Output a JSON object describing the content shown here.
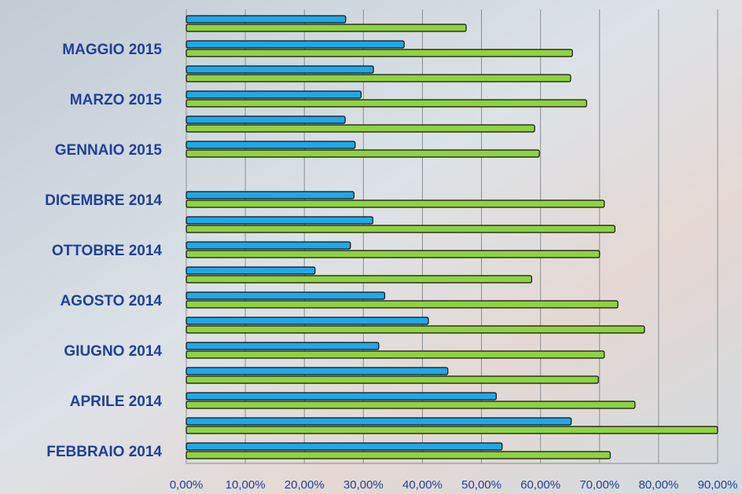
{
  "chart_data": {
    "type": "hbar",
    "categories": [
      "FEBBRAIO 2014",
      null,
      "APRILE 2014",
      null,
      "GIUGNO 2014",
      null,
      "AGOSTO 2014",
      null,
      "OTTOBRE 2014",
      null,
      "DICEMBRE 2014",
      null,
      "GENNAIO 2015",
      null,
      "MARZO 2015",
      null,
      "MAGGIO 2015",
      null
    ],
    "series": [
      {
        "color": "#1fa8e8",
        "values": [
          53.5,
          65.2,
          52.5,
          44.3,
          32.6,
          41.0,
          33.6,
          21.8,
          27.8,
          31.6,
          28.4,
          null,
          28.6,
          26.9,
          29.6,
          31.7,
          36.9,
          27.0
        ]
      },
      {
        "color": "#8fd340",
        "values": [
          71.8,
          90.0,
          76.0,
          69.8,
          70.8,
          77.6,
          73.1,
          58.5,
          70.0,
          72.6,
          70.8,
          null,
          59.8,
          59.0,
          67.8,
          65.1,
          65.4,
          47.4
        ]
      }
    ],
    "xlim": [
      0,
      90
    ],
    "xticks": [
      {
        "value": 0,
        "label": "0,00%"
      },
      {
        "value": 10,
        "label": "10,00%"
      },
      {
        "value": 20,
        "label": "20,00%"
      },
      {
        "value": 30,
        "label": "30,00%"
      },
      {
        "value": 40,
        "label": "40,00%"
      },
      {
        "value": 50,
        "label": "50,00%"
      },
      {
        "value": 60,
        "label": "60,00%"
      },
      {
        "value": 70,
        "label": "70,00%"
      },
      {
        "value": 80,
        "label": "80,00%"
      },
      {
        "value": 90,
        "label": "90,00%"
      }
    ],
    "grid": true
  }
}
